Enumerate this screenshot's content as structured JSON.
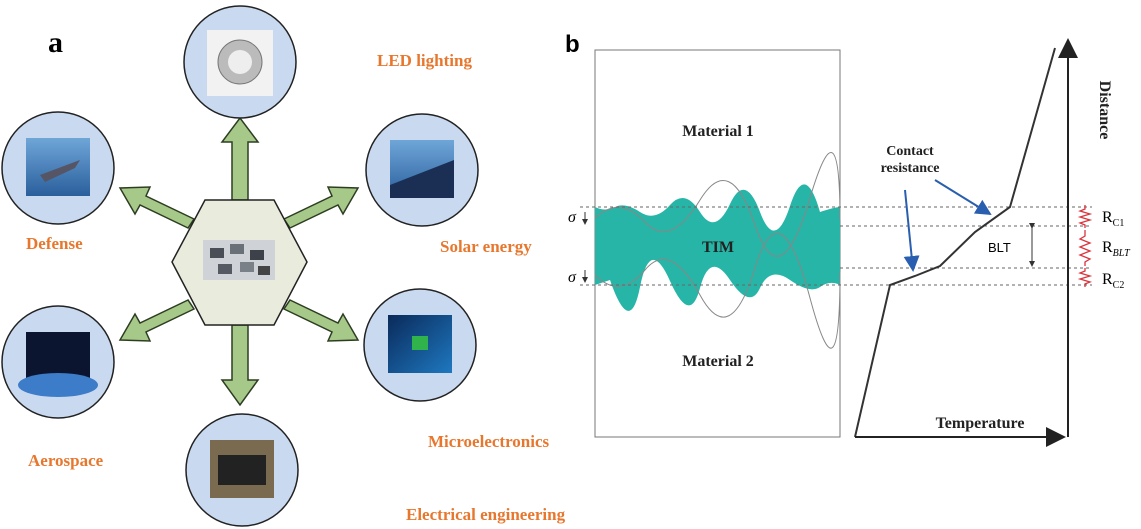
{
  "panel_a": {
    "label": "a",
    "applications": [
      "LED lighting",
      "Solar energy",
      "Microelectronics",
      "Electrical engineering",
      "Aerospace",
      "Defense"
    ]
  },
  "panel_b": {
    "label": "b",
    "material_top": "Material 1",
    "material_bottom": "Material 2",
    "interface": "TIM",
    "roughness": [
      "σ",
      "σ"
    ],
    "contact_label": "Contact resistance",
    "blt": "BLT",
    "x_axis": "Temperature",
    "y_axis": "Distance",
    "resistances": [
      {
        "main": "R",
        "sub": "C1"
      },
      {
        "main": "R",
        "sub": "BLT"
      },
      {
        "main": "R",
        "sub": "C2"
      }
    ]
  }
}
